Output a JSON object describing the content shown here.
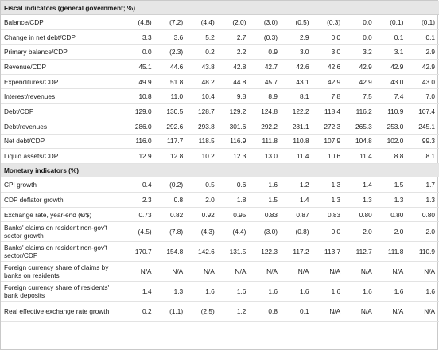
{
  "sections": [
    {
      "title": "Fiscal indicators (general government; %)",
      "rows": [
        {
          "label": "Balance/CDP",
          "values": [
            "(4.8)",
            "(7.2)",
            "(4.4)",
            "(2.0)",
            "(3.0)",
            "(0.5)",
            "(0.3)",
            "0.0",
            "(0.1)",
            "(0.1)"
          ]
        },
        {
          "label": "Change in net debt/CDP",
          "values": [
            "3.3",
            "3.6",
            "5.2",
            "2.7",
            "(0.3)",
            "2.9",
            "0.0",
            "0.0",
            "0.1",
            "0.1"
          ]
        },
        {
          "label": "Primary balance/CDP",
          "values": [
            "0.0",
            "(2.3)",
            "0.2",
            "2.2",
            "0.9",
            "3.0",
            "3.0",
            "3.2",
            "3.1",
            "2.9"
          ]
        },
        {
          "label": "Revenue/CDP",
          "values": [
            "45.1",
            "44.6",
            "43.8",
            "42.8",
            "42.7",
            "42.6",
            "42.6",
            "42.9",
            "42.9",
            "42.9"
          ]
        },
        {
          "label": "Expenditures/CDP",
          "values": [
            "49.9",
            "51.8",
            "48.2",
            "44.8",
            "45.7",
            "43.1",
            "42.9",
            "42.9",
            "43.0",
            "43.0"
          ]
        },
        {
          "label": "Interest/revenues",
          "values": [
            "10.8",
            "11.0",
            "10.4",
            "9.8",
            "8.9",
            "8.1",
            "7.8",
            "7.5",
            "7.4",
            "7.0"
          ]
        },
        {
          "label": "Debt/CDP",
          "values": [
            "129.0",
            "130.5",
            "128.7",
            "129.2",
            "124.8",
            "122.2",
            "118.4",
            "116.2",
            "110.9",
            "107.4"
          ]
        },
        {
          "label": "Debt/revenues",
          "values": [
            "286.0",
            "292.6",
            "293.8",
            "301.6",
            "292.2",
            "281.1",
            "272.3",
            "265.3",
            "253.0",
            "245.1"
          ]
        },
        {
          "label": "Net debt/CDP",
          "values": [
            "116.0",
            "117.7",
            "118.5",
            "116.9",
            "111.8",
            "110.8",
            "107.9",
            "104.8",
            "102.0",
            "99.3"
          ]
        },
        {
          "label": "Liquid assets/CDP",
          "values": [
            "12.9",
            "12.8",
            "10.2",
            "12.3",
            "13.0",
            "11.4",
            "10.6",
            "11.4",
            "8.8",
            "8.1"
          ]
        }
      ]
    },
    {
      "title": "Monetary indicators (%)",
      "rows": [
        {
          "label": "CPI growth",
          "values": [
            "0.4",
            "(0.2)",
            "0.5",
            "0.6",
            "1.6",
            "1.2",
            "1.3",
            "1.4",
            "1.5",
            "1.7"
          ]
        },
        {
          "label": "CDP deflator growth",
          "values": [
            "2.3",
            "0.8",
            "2.0",
            "1.8",
            "1.5",
            "1.4",
            "1.3",
            "1.3",
            "1.3",
            "1.3"
          ]
        },
        {
          "label": "Exchange rate, year-end (€/$)",
          "values": [
            "0.73",
            "0.82",
            "0.92",
            "0.95",
            "0.83",
            "0.87",
            "0.83",
            "0.80",
            "0.80",
            "0.80"
          ]
        },
        {
          "label": "Banks' claims on resident non-gov't sector growth",
          "values": [
            "(4.5)",
            "(7.8)",
            "(4.3)",
            "(4.4)",
            "(3.0)",
            "(0.8)",
            "0.0",
            "2.0",
            "2.0",
            "2.0"
          ]
        },
        {
          "label": "Banks' claims on resident non-gov't sector/CDP",
          "values": [
            "170.7",
            "154.8",
            "142.6",
            "131.5",
            "122.3",
            "117.2",
            "113.7",
            "112.7",
            "111.8",
            "110.9"
          ]
        },
        {
          "label": "Foreign currency share of claims by banks on residents",
          "values": [
            "N/A",
            "N/A",
            "N/A",
            "N/A",
            "N/A",
            "N/A",
            "N/A",
            "N/A",
            "N/A",
            "N/A"
          ]
        },
        {
          "label": "Foreign currency share of residents' bank deposits",
          "values": [
            "1.4",
            "1.3",
            "1.6",
            "1.6",
            "1.6",
            "1.6",
            "1.6",
            "1.6",
            "1.6",
            "1.6"
          ]
        },
        {
          "label": "Real effective exchange rate growth",
          "values": [
            "0.2",
            "(1.1)",
            "(2.5)",
            "1.2",
            "0.8",
            "0.1",
            "N/A",
            "N/A",
            "N/A",
            "N/A"
          ]
        }
      ]
    }
  ]
}
